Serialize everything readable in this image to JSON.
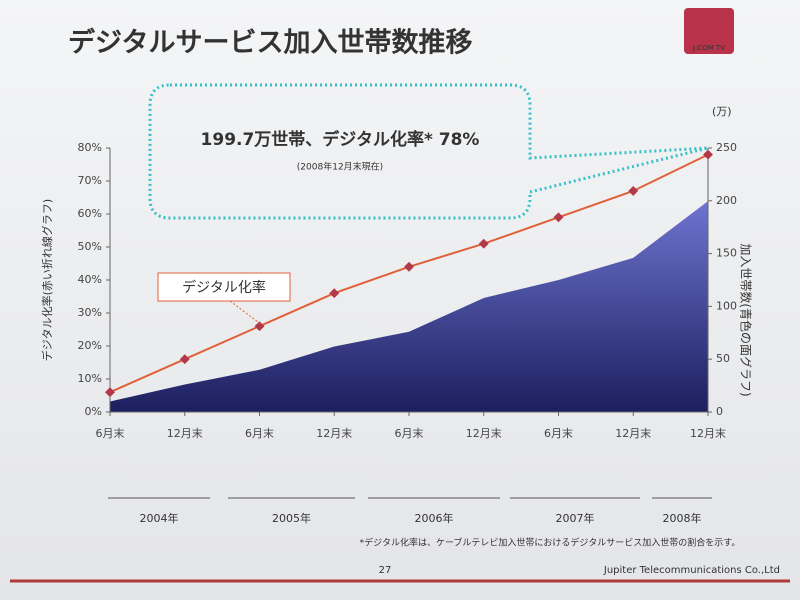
{
  "title": "デジタルサービス加入世帯数推移",
  "logo": "J:COM TV",
  "callout": {
    "headline": "199.7万世帯、デジタル化率* 78%",
    "sub": "(2008年12月末現在)"
  },
  "footnote": "*デジタル化率は、ケーブルテレビ加入世帯におけるデジタルサービス加入世帯の割合を示す。",
  "page_number": "27",
  "company": "Jupiter Telecommunications Co.,Ltd",
  "chart_data": {
    "type": "line-area",
    "ylabel": "デジタル化率(赤い折れ線グラフ)",
    "y2label": "加入世帯数(青色の面グラフ)",
    "y2unit": "(万)",
    "categories": [
      "6月末",
      "12月末",
      "6月末",
      "12月末",
      "6月末",
      "12月末",
      "6月末",
      "12月末",
      "12月末"
    ],
    "year_labels": [
      "2004年",
      "2005年",
      "2006年",
      "2007年",
      "2008年"
    ],
    "series": [
      {
        "name": "デジタル化率",
        "type": "line",
        "axis": "y",
        "color": "#e0603a",
        "values": [
          6,
          16,
          26,
          36,
          44,
          51,
          59,
          67,
          78
        ]
      },
      {
        "type": "area",
        "axis": "y2",
        "color": "#6e74d0",
        "values": [
          10,
          26,
          40,
          62,
          76,
          108,
          125,
          146,
          199.7
        ]
      }
    ],
    "ylim": [
      0,
      80
    ],
    "yticks": [
      {
        "value": 0,
        "label": "0%"
      },
      {
        "value": 10,
        "label": "10%"
      },
      {
        "value": 20,
        "label": "20%"
      },
      {
        "value": 30,
        "label": "30%"
      },
      {
        "value": 40,
        "label": "40%"
      },
      {
        "value": 50,
        "label": "50%"
      },
      {
        "value": 60,
        "label": "60%"
      },
      {
        "value": 70,
        "label": "70%"
      },
      {
        "value": 80,
        "label": "80%"
      }
    ],
    "y2lim": [
      0,
      250
    ],
    "y2ticks": [
      0,
      50,
      100,
      150,
      200,
      250
    ],
    "grid": false
  }
}
